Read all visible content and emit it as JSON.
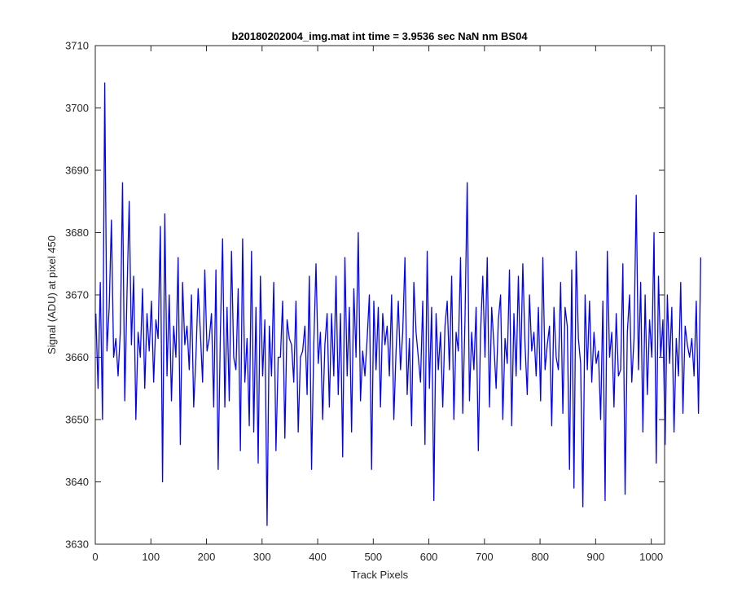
{
  "chart_data": {
    "type": "line",
    "title": "b20180202004_img.mat int time = 3.9536 sec  NaN nm BS04",
    "xlabel": "Track Pixels",
    "ylabel": "Signal (ADU) at pixel 450",
    "xlim": [
      0,
      1024
    ],
    "ylim": [
      3630,
      3710
    ],
    "xticks": [
      0,
      100,
      200,
      300,
      400,
      500,
      600,
      700,
      800,
      900,
      1000
    ],
    "yticks": [
      3630,
      3640,
      3650,
      3660,
      3670,
      3680,
      3690,
      3700,
      3710
    ],
    "grid": false,
    "line_color": "#0000ff",
    "series": [
      {
        "x_start": 1,
        "x_step": 4,
        "values": [
          3667,
          3655,
          3672,
          3650,
          3704,
          3661,
          3668,
          3682,
          3660,
          3663,
          3657,
          3664,
          3688,
          3653,
          3670,
          3685,
          3662,
          3673,
          3650,
          3664,
          3660,
          3671,
          3655,
          3667,
          3661,
          3669,
          3656,
          3666,
          3663,
          3681,
          3640,
          3683,
          3657,
          3670,
          3653,
          3665,
          3660,
          3676,
          3646,
          3672,
          3662,
          3665,
          3658,
          3670,
          3652,
          3660,
          3671,
          3664,
          3656,
          3674,
          3661,
          3663,
          3667,
          3652,
          3674,
          3642,
          3664,
          3679,
          3652,
          3668,
          3653,
          3677,
          3660,
          3658,
          3671,
          3645,
          3679,
          3656,
          3663,
          3649,
          3677,
          3648,
          3668,
          3643,
          3673,
          3657,
          3666,
          3633,
          3665,
          3657,
          3672,
          3645,
          3660,
          3660,
          3669,
          3647,
          3666,
          3663,
          3662,
          3656,
          3669,
          3648,
          3660,
          3661,
          3665,
          3654,
          3673,
          3642,
          3662,
          3675,
          3659,
          3664,
          3650,
          3662,
          3667,
          3652,
          3667,
          3657,
          3673,
          3654,
          3667,
          3644,
          3676,
          3657,
          3668,
          3648,
          3671,
          3660,
          3680,
          3653,
          3661,
          3657,
          3663,
          3670,
          3642,
          3669,
          3658,
          3668,
          3652,
          3667,
          3662,
          3665,
          3657,
          3670,
          3650,
          3661,
          3669,
          3658,
          3664,
          3676,
          3654,
          3663,
          3649,
          3672,
          3664,
          3660,
          3656,
          3669,
          3646,
          3677,
          3655,
          3668,
          3637,
          3667,
          3658,
          3664,
          3652,
          3665,
          3669,
          3658,
          3673,
          3650,
          3664,
          3661,
          3676,
          3651,
          3666,
          3688,
          3653,
          3664,
          3658,
          3668,
          3645,
          3664,
          3673,
          3660,
          3676,
          3652,
          3668,
          3662,
          3655,
          3666,
          3670,
          3650,
          3663,
          3659,
          3674,
          3649,
          3667,
          3657,
          3673,
          3658,
          3675,
          3662,
          3654,
          3670,
          3661,
          3664,
          3657,
          3668,
          3653,
          3676,
          3658,
          3662,
          3665,
          3649,
          3668,
          3660,
          3658,
          3672,
          3651,
          3668,
          3665,
          3642,
          3674,
          3639,
          3677,
          3663,
          3659,
          3636,
          3670,
          3658,
          3669,
          3656,
          3664,
          3659,
          3661,
          3650,
          3669,
          3637,
          3677,
          3660,
          3664,
          3652,
          3667,
          3657,
          3658,
          3675,
          3638,
          3664,
          3670,
          3656,
          3663,
          3686,
          3658,
          3672,
          3648,
          3670,
          3654,
          3666,
          3660,
          3680,
          3643,
          3673,
          3660,
          3666,
          3646,
          3670,
          3659,
          3668,
          3648,
          3663,
          3657,
          3672,
          3651,
          3665,
          3662,
          3660,
          3663,
          3657,
          3669,
          3651,
          3676
        ]
      }
    ]
  }
}
